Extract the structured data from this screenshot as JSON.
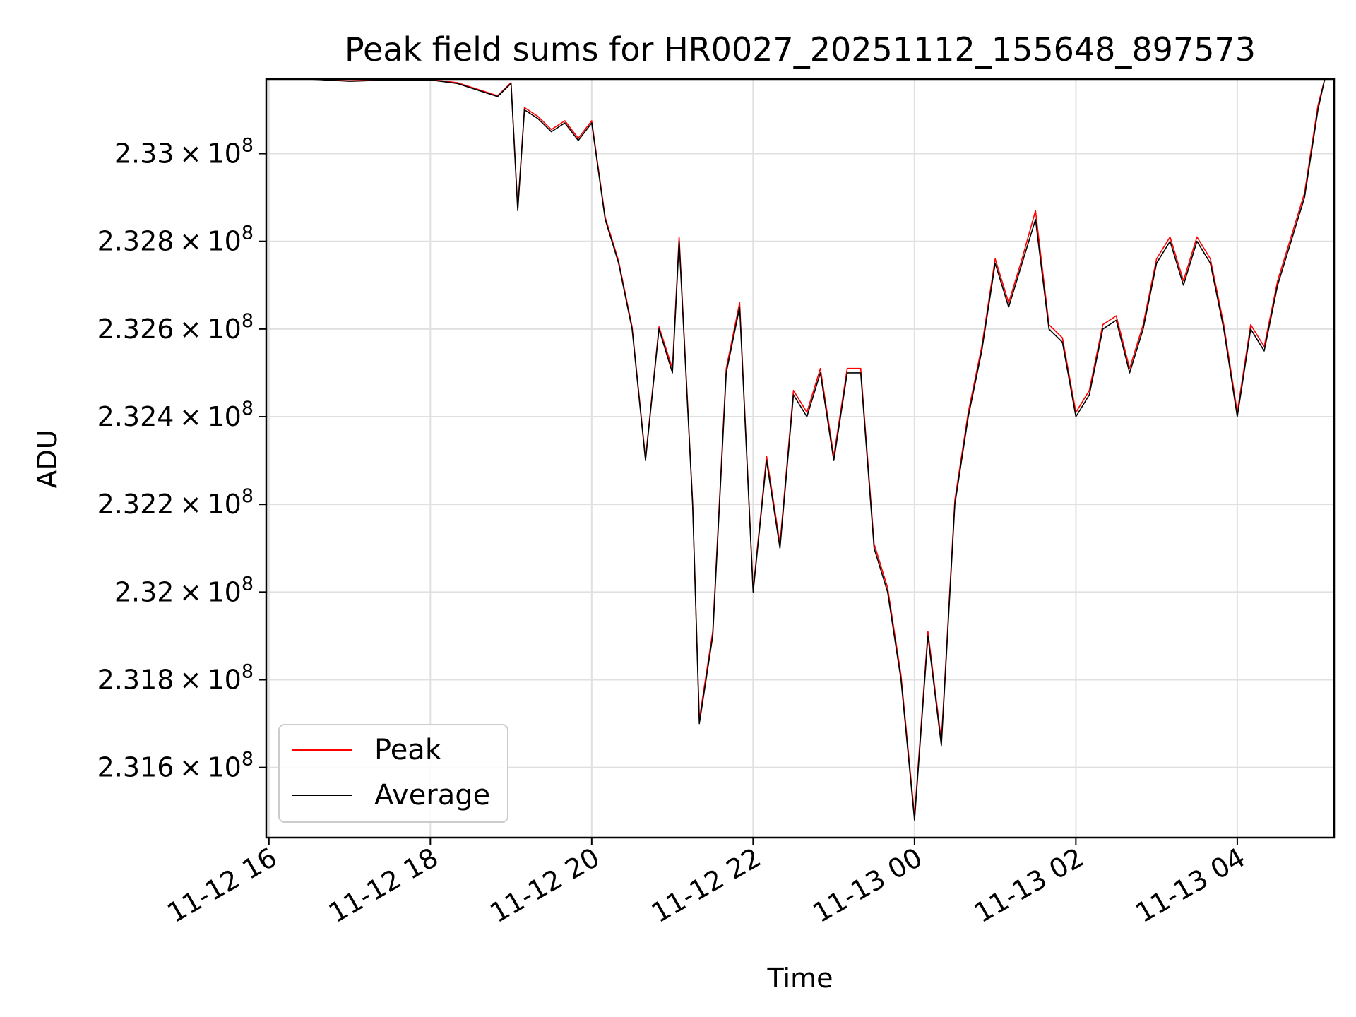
{
  "chart_data": {
    "type": "line",
    "title": "Peak field sums for HR0027_20251112_155648_897573",
    "xlabel": "Time",
    "ylabel": "ADU",
    "x_start": "2025-11-12 15:58",
    "x_end": "2025-11-13 05:12",
    "xlim": [
      "2025-11-12 15:58",
      "2025-11-13 05:12"
    ],
    "ylim": [
      231440000,
      233170000
    ],
    "x_ticks": [
      {
        "time": "2025-11-12 16:00",
        "label": "11-12 16"
      },
      {
        "time": "2025-11-12 18:00",
        "label": "11-12 18"
      },
      {
        "time": "2025-11-12 20:00",
        "label": "11-12 20"
      },
      {
        "time": "2025-11-12 22:00",
        "label": "11-12 22"
      },
      {
        "time": "2025-11-13 00:00",
        "label": "11-13 00"
      },
      {
        "time": "2025-11-13 02:00",
        "label": "11-13 02"
      },
      {
        "time": "2025-11-13 04:00",
        "label": "11-13 04"
      }
    ],
    "y_ticks": [
      {
        "value": 231600000,
        "mantissa": "2.316",
        "times": "×",
        "base": "10",
        "exp": "8"
      },
      {
        "value": 231800000,
        "mantissa": "2.318",
        "times": "×",
        "base": "10",
        "exp": "8"
      },
      {
        "value": 232000000,
        "mantissa": "2.32",
        "times": "×",
        "base": "10",
        "exp": "8"
      },
      {
        "value": 232200000,
        "mantissa": "2.322",
        "times": "×",
        "base": "10",
        "exp": "8"
      },
      {
        "value": 232400000,
        "mantissa": "2.324",
        "times": "×",
        "base": "10",
        "exp": "8"
      },
      {
        "value": 232600000,
        "mantissa": "2.326",
        "times": "×",
        "base": "10",
        "exp": "8"
      },
      {
        "value": 232800000,
        "mantissa": "2.328",
        "times": "×",
        "base": "10",
        "exp": "8"
      },
      {
        "value": 233000000,
        "mantissa": "2.33",
        "times": "×",
        "base": "10",
        "exp": "8"
      }
    ],
    "grid": true,
    "legend_position": "lower-left",
    "series": [
      {
        "name": "Peak",
        "color": "#ff0000"
      },
      {
        "name": "Average",
        "color": "#000000"
      }
    ],
    "x": [
      "2025-11-12 15:58",
      "2025-11-12 16:30",
      "2025-11-12 17:00",
      "2025-11-12 17:30",
      "2025-11-12 18:00",
      "2025-11-12 18:20",
      "2025-11-12 18:40",
      "2025-11-12 18:50",
      "2025-11-12 19:00",
      "2025-11-12 19:05",
      "2025-11-12 19:10",
      "2025-11-12 19:20",
      "2025-11-12 19:30",
      "2025-11-12 19:40",
      "2025-11-12 19:50",
      "2025-11-12 20:00",
      "2025-11-12 20:10",
      "2025-11-12 20:20",
      "2025-11-12 20:30",
      "2025-11-12 20:40",
      "2025-11-12 20:50",
      "2025-11-12 21:00",
      "2025-11-12 21:05",
      "2025-11-12 21:15",
      "2025-11-12 21:20",
      "2025-11-12 21:30",
      "2025-11-12 21:40",
      "2025-11-12 21:50",
      "2025-11-12 22:00",
      "2025-11-12 22:10",
      "2025-11-12 22:20",
      "2025-11-12 22:30",
      "2025-11-12 22:40",
      "2025-11-12 22:50",
      "2025-11-12 23:00",
      "2025-11-12 23:10",
      "2025-11-12 23:20",
      "2025-11-12 23:30",
      "2025-11-12 23:40",
      "2025-11-12 23:50",
      "2025-11-13 00:00",
      "2025-11-13 00:10",
      "2025-11-13 00:20",
      "2025-11-13 00:30",
      "2025-11-13 00:40",
      "2025-11-13 00:50",
      "2025-11-13 01:00",
      "2025-11-13 01:10",
      "2025-11-13 01:20",
      "2025-11-13 01:30",
      "2025-11-13 01:40",
      "2025-11-13 01:50",
      "2025-11-13 02:00",
      "2025-11-13 02:10",
      "2025-11-13 02:20",
      "2025-11-13 02:30",
      "2025-11-13 02:40",
      "2025-11-13 02:50",
      "2025-11-13 03:00",
      "2025-11-13 03:10",
      "2025-11-13 03:20",
      "2025-11-13 03:30",
      "2025-11-13 03:40",
      "2025-11-13 03:50",
      "2025-11-13 04:00",
      "2025-11-13 04:10",
      "2025-11-13 04:20",
      "2025-11-13 04:30",
      "2025-11-13 04:40",
      "2025-11-13 04:50",
      "2025-11-13 05:00",
      "2025-11-13 05:05"
    ],
    "values_average": [
      233170000,
      233170000,
      233165000,
      233168000,
      233168000,
      233160000,
      233140000,
      233130000,
      233160000,
      232870000,
      233100000,
      233080000,
      233050000,
      233070000,
      233030000,
      233070000,
      232850000,
      232750000,
      232600000,
      232300000,
      232600000,
      232500000,
      232800000,
      232200000,
      231700000,
      231900000,
      232500000,
      232650000,
      232000000,
      232300000,
      232100000,
      232450000,
      232400000,
      232500000,
      232300000,
      232500000,
      232500000,
      232100000,
      232000000,
      231800000,
      231480000,
      231900000,
      231650000,
      232200000,
      232400000,
      232550000,
      232750000,
      232650000,
      232750000,
      232850000,
      232600000,
      232570000,
      232400000,
      232450000,
      232600000,
      232620000,
      232500000,
      232600000,
      232750000,
      232800000,
      232700000,
      232800000,
      232750000,
      232600000,
      232400000,
      232600000,
      232550000,
      232700000,
      232800000,
      232900000,
      233100000,
      233170000
    ],
    "values_peak": [
      233170000,
      233170000,
      233166000,
      233169000,
      233169000,
      233162000,
      233142000,
      233132000,
      233162000,
      232875000,
      233105000,
      233085000,
      233055000,
      233075000,
      233035000,
      233075000,
      232855000,
      232755000,
      232605000,
      232305000,
      232605000,
      232510000,
      232810000,
      232205000,
      231710000,
      231910000,
      232510000,
      232660000,
      232005000,
      232310000,
      232110000,
      232460000,
      232410000,
      232510000,
      232310000,
      232510000,
      232510000,
      232110000,
      232010000,
      231810000,
      231490000,
      231910000,
      231660000,
      232210000,
      232410000,
      232560000,
      232760000,
      232660000,
      232760000,
      232870000,
      232610000,
      232580000,
      232410000,
      232460000,
      232610000,
      232630000,
      232510000,
      232610000,
      232760000,
      232810000,
      232710000,
      232810000,
      232760000,
      232610000,
      232410000,
      232610000,
      232560000,
      232710000,
      232810000,
      232910000,
      233110000,
      233170000
    ]
  }
}
